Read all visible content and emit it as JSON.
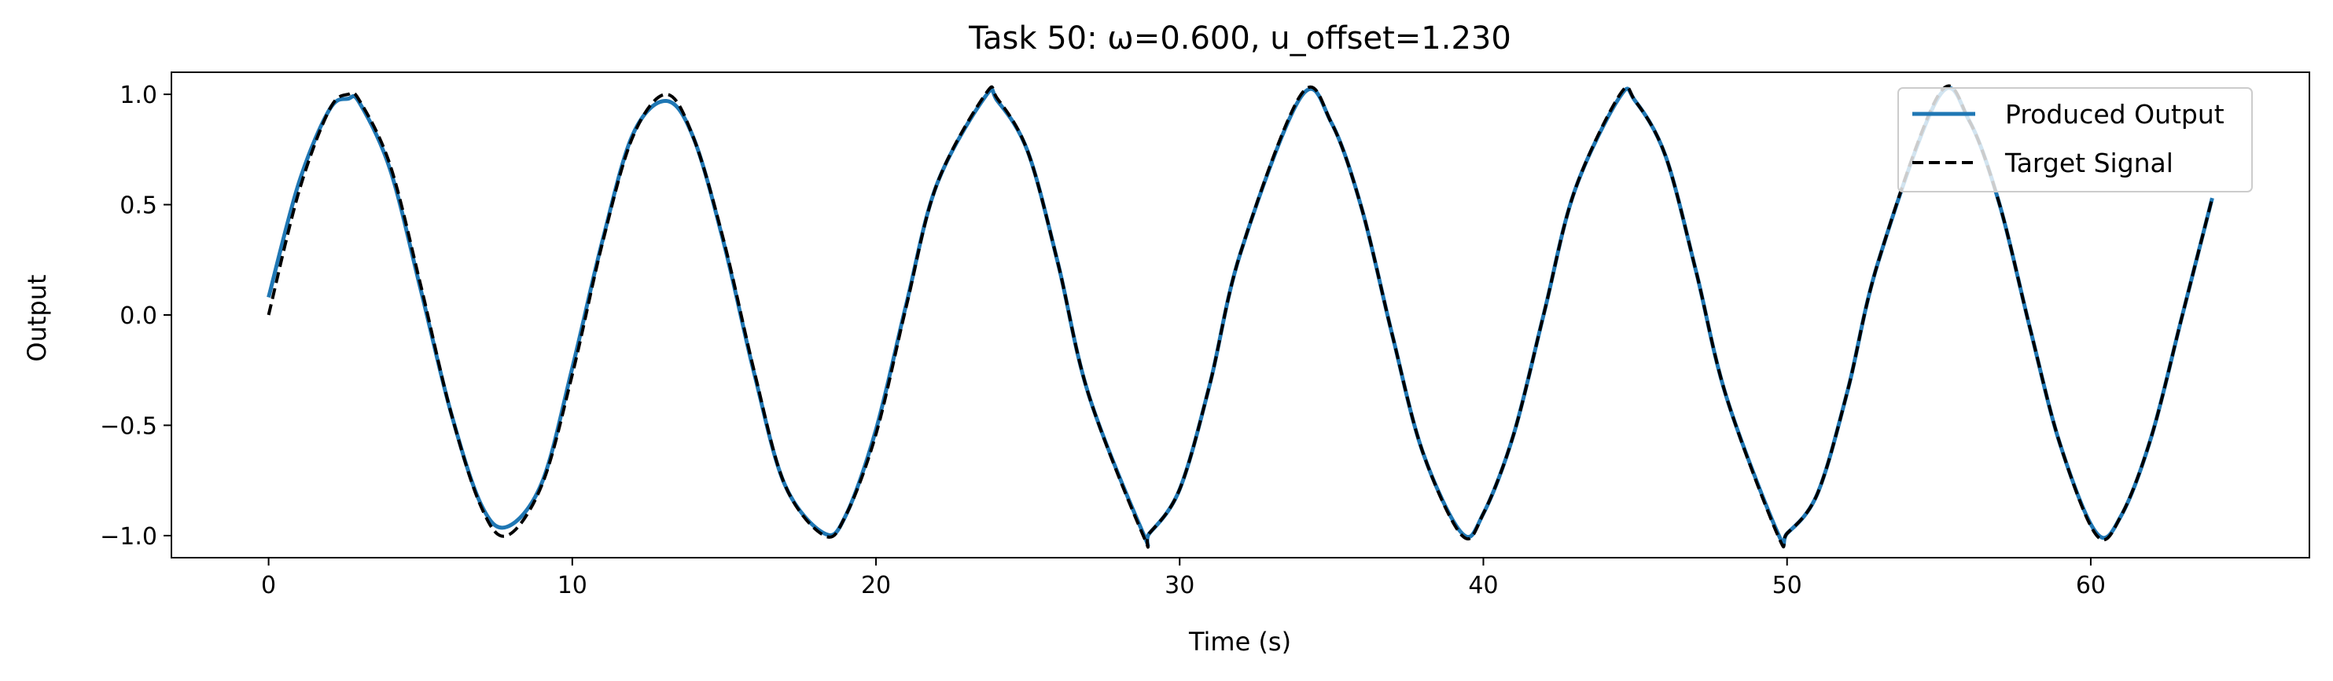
{
  "chart_data": {
    "type": "line",
    "title": "Task 50: ω=0.600, u_offset=1.230",
    "xlabel": "Time (s)",
    "ylabel": "Output",
    "xlim": [
      -3.2,
      67.2
    ],
    "ylim": [
      -1.1,
      1.1
    ],
    "xticks": [
      0,
      10,
      20,
      30,
      40,
      50,
      60
    ],
    "yticks": [
      -1.0,
      -0.5,
      0.0,
      0.5,
      1.0
    ],
    "xtick_labels": [
      "0",
      "10",
      "20",
      "30",
      "40",
      "50",
      "60"
    ],
    "ytick_labels": [
      "−1.0",
      "−0.5",
      "0.0",
      "0.5",
      "1.0"
    ],
    "grid": false,
    "legend_position": "top-right",
    "series": [
      {
        "name": "Produced Output",
        "color": "#1f77b4",
        "style": "solid",
        "x": [
          0,
          1,
          2,
          2.62,
          3,
          4,
          5,
          6,
          7,
          7.85,
          9,
          10,
          11,
          12,
          13.1,
          14,
          15,
          16,
          17,
          18.3,
          19,
          20,
          21,
          22,
          23.6,
          24,
          25,
          26,
          27,
          28.8,
          29,
          30,
          31,
          32,
          34.0,
          35,
          36,
          37,
          38,
          39.3,
          40,
          41,
          42,
          43,
          44.5,
          45,
          46,
          47,
          48,
          49.7,
          50,
          51,
          52,
          53,
          55.0,
          56,
          57,
          58,
          59,
          60.2,
          61,
          62,
          63,
          64
        ],
        "y": [
          0.08,
          0.6,
          0.93,
          0.98,
          0.96,
          0.66,
          0.12,
          -0.44,
          -0.86,
          -0.96,
          -0.76,
          -0.24,
          0.34,
          0.82,
          0.97,
          0.8,
          0.32,
          -0.27,
          -0.77,
          -0.99,
          -0.91,
          -0.52,
          0.05,
          0.59,
          0.99,
          0.97,
          0.74,
          0.23,
          -0.36,
          -0.99,
          -0.99,
          -0.79,
          -0.31,
          0.28,
          0.99,
          0.87,
          0.48,
          -0.09,
          -0.62,
          -0.99,
          -0.9,
          -0.54,
          0.01,
          0.56,
          0.99,
          0.97,
          0.72,
          0.2,
          -0.37,
          -0.99,
          -0.99,
          -0.81,
          -0.34,
          0.24,
          0.99,
          0.88,
          0.5,
          -0.06,
          -0.59,
          -0.99,
          -0.91,
          -0.55,
          -0.01,
          0.53
        ]
      },
      {
        "name": "Target Signal",
        "color": "#000000",
        "style": "dashed",
        "x": [
          0,
          1,
          2,
          2.62,
          3,
          4,
          5,
          6,
          7,
          7.85,
          9,
          10,
          11,
          12,
          13.1,
          14,
          15,
          16,
          17,
          18.3,
          19,
          20,
          21,
          22,
          23.6,
          24,
          25,
          26,
          27,
          28.8,
          29,
          30,
          31,
          32,
          34.0,
          35,
          36,
          37,
          38,
          39.3,
          40,
          41,
          42,
          43,
          44.5,
          45,
          46,
          47,
          48,
          49.7,
          50,
          51,
          52,
          53,
          55.0,
          56,
          57,
          58,
          59,
          60.2,
          61,
          62,
          63,
          64
        ],
        "y": [
          0.0,
          0.56,
          0.93,
          1.0,
          0.97,
          0.68,
          0.14,
          -0.44,
          -0.87,
          -1.0,
          -0.77,
          -0.27,
          0.33,
          0.81,
          1.0,
          0.8,
          0.33,
          -0.26,
          -0.77,
          -1.0,
          -0.91,
          -0.54,
          0.04,
          0.59,
          1.0,
          0.98,
          0.74,
          0.23,
          -0.36,
          -1.0,
          -0.99,
          -0.79,
          -0.31,
          0.28,
          1.0,
          0.87,
          0.48,
          -0.09,
          -0.62,
          -1.0,
          -0.9,
          -0.54,
          0.01,
          0.56,
          1.0,
          0.97,
          0.72,
          0.2,
          -0.37,
          -1.0,
          -0.99,
          -0.81,
          -0.34,
          0.24,
          1.0,
          0.88,
          0.5,
          -0.06,
          -0.59,
          -1.0,
          -0.91,
          -0.55,
          -0.01,
          0.53
        ]
      }
    ]
  }
}
